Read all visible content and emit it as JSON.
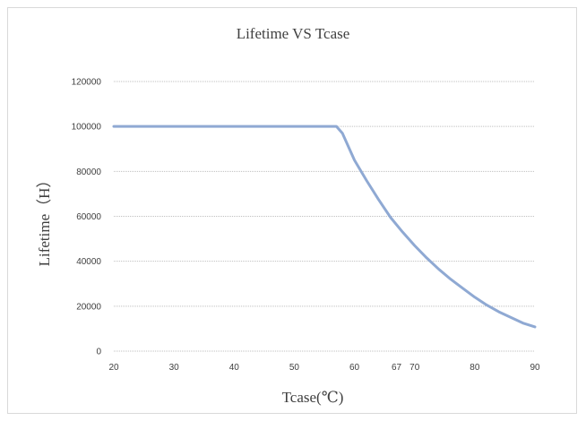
{
  "chart_data": {
    "type": "line",
    "title": "Lifetime VS Tcase",
    "xlabel": "Tcase(℃)",
    "ylabel": "Lifetime（H）",
    "xlim": [
      20,
      90
    ],
    "ylim": [
      0,
      120000
    ],
    "x_ticks": [
      20,
      30,
      40,
      50,
      60,
      67,
      70,
      80,
      90
    ],
    "y_ticks": [
      0,
      20000,
      40000,
      60000,
      80000,
      100000,
      120000
    ],
    "grid": true,
    "series": [
      {
        "color": "#8fa9d3",
        "x": [
          20,
          30,
          40,
          50,
          55,
          57,
          58,
          59,
          60,
          62,
          64,
          66,
          68,
          70,
          72,
          74,
          76,
          78,
          80,
          82,
          84,
          86,
          88,
          90
        ],
        "y": [
          100000,
          100000,
          100000,
          100000,
          100000,
          100000,
          97000,
          91000,
          85000,
          76000,
          67500,
          59500,
          53000,
          47000,
          41500,
          36500,
          32000,
          28000,
          24000,
          20500,
          17500,
          15000,
          12500,
          10800
        ]
      }
    ]
  }
}
